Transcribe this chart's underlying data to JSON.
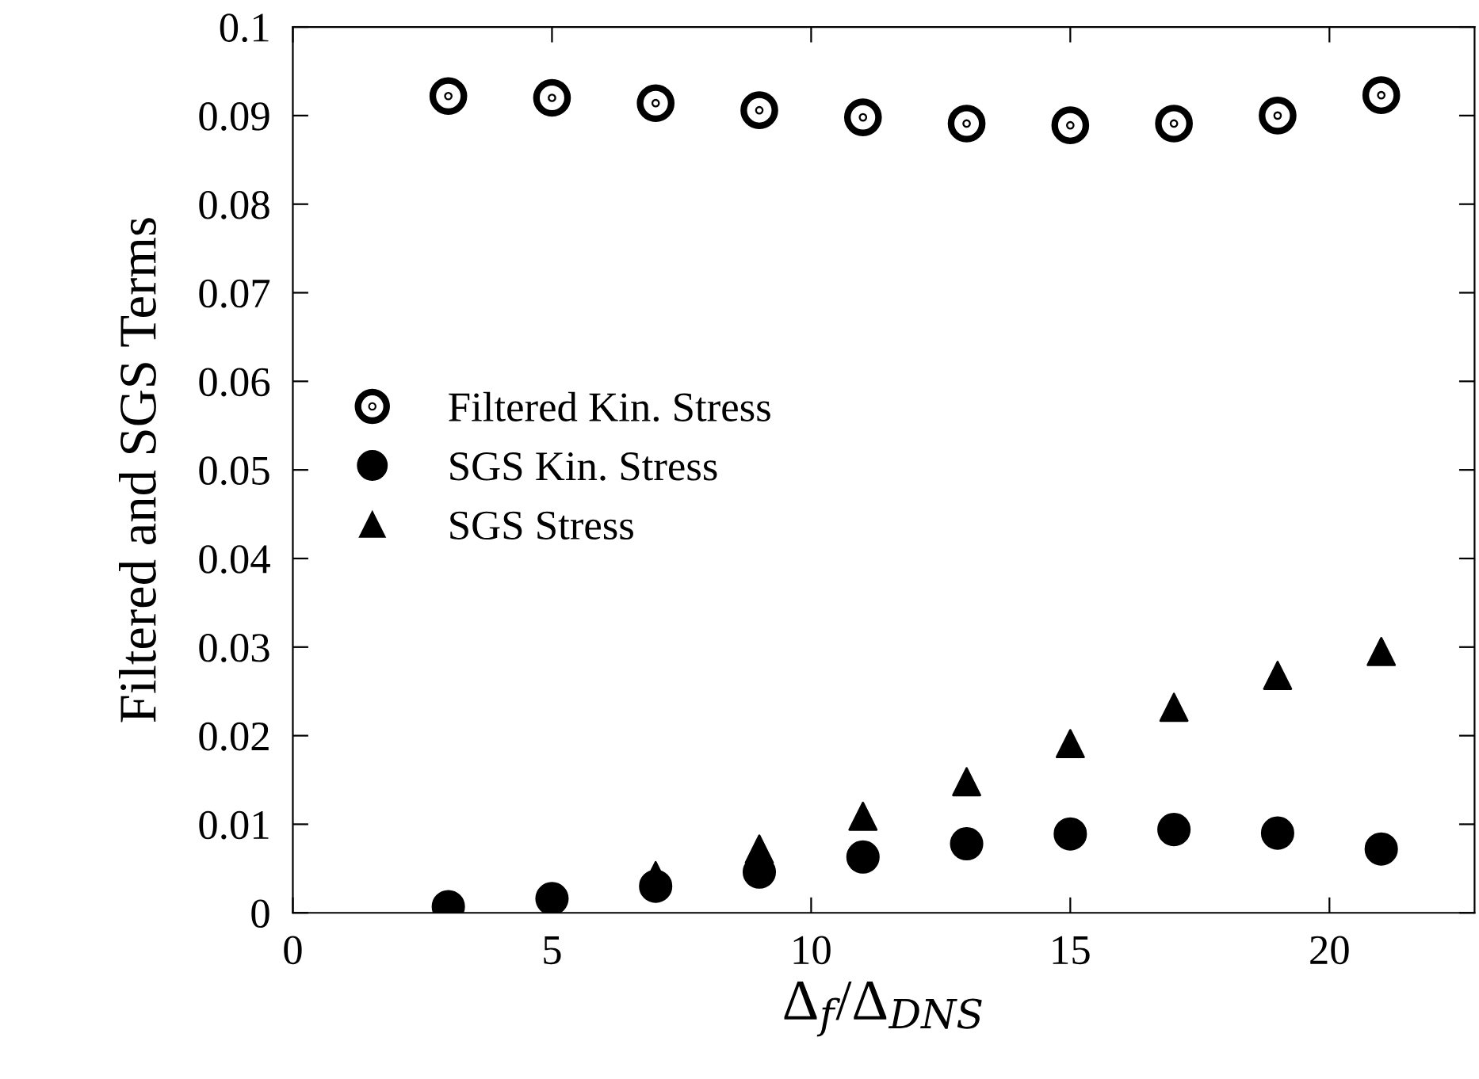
{
  "chart_data": {
    "type": "scatter",
    "xlabel": "Δ$_{f}$/Δ$_{DNS}$",
    "ylabel": "Filtered and SGS Terms",
    "x": [
      3,
      5,
      7,
      9,
      11,
      13,
      15,
      17,
      19,
      21
    ],
    "series": [
      {
        "name": "Filtered Kin. Stress",
        "color": "#000000",
        "marker": "circle",
        "values": [
          0.0922,
          0.092,
          0.0914,
          0.0906,
          0.0898,
          0.0891,
          0.0889,
          0.0891,
          0.09,
          0.0923
        ]
      },
      {
        "name": "SGS Kin. Stress",
        "color": "#000000",
        "marker": "circle",
        "values": [
          0.0007,
          0.0016,
          0.003,
          0.0046,
          0.0063,
          0.0078,
          0.0089,
          0.0094,
          0.009,
          0.0072
        ]
      },
      {
        "name": "SGS Stress",
        "color": "#000000",
        "marker": "triangle",
        "values": [
          null,
          null,
          0.0042,
          0.0072,
          0.0109,
          0.0148,
          0.0191,
          0.0232,
          0.0268,
          0.0295
        ]
      }
    ],
    "xlim": [
      0,
      22.8
    ],
    "xticks": [
      0,
      5,
      10,
      15,
      20
    ],
    "ylim": [
      0,
      0.1
    ],
    "yticks": [
      0,
      0.01,
      0.02,
      0.03,
      0.04,
      0.05,
      0.06,
      0.07,
      0.08,
      0.09,
      0.1
    ],
    "grid": false,
    "legend": "center left"
  }
}
